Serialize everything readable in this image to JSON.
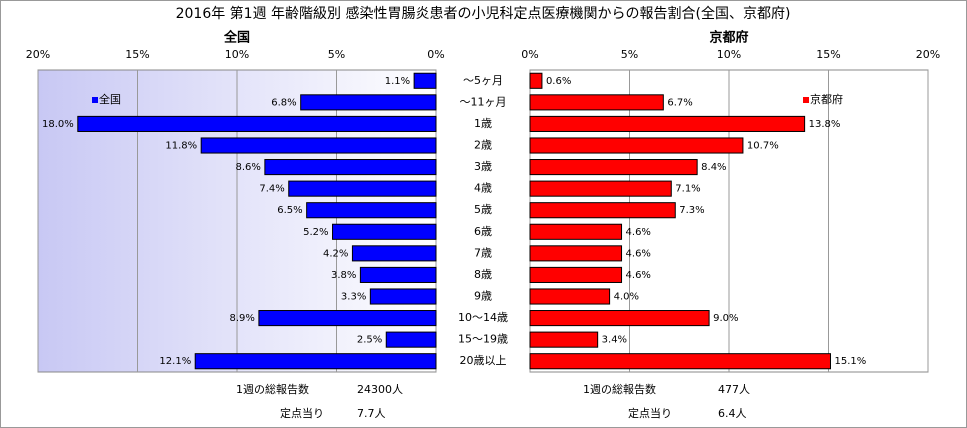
{
  "title": "2016年 第1週 年齢階級別 感染性胃腸炎患者の小児科定点医療機関からの報告割合(全国、京都府)",
  "chart_data": [
    {
      "type": "bar",
      "orientation": "horizontal",
      "x_reversed": true,
      "title": "全国",
      "categories": [
        "～5ヶ月",
        "～11ヶ月",
        "1歳",
        "2歳",
        "3歳",
        "4歳",
        "5歳",
        "6歳",
        "7歳",
        "8歳",
        "9歳",
        "10～14歳",
        "15～19歳",
        "20歳以上"
      ],
      "series": [
        {
          "name": "全国",
          "color": "#0000ff",
          "values": [
            1.1,
            6.8,
            18.0,
            11.8,
            8.6,
            7.4,
            6.5,
            5.2,
            4.2,
            3.8,
            3.3,
            8.9,
            2.5,
            12.1
          ],
          "value_labels": [
            "1.1%",
            "6.8%",
            "18.0%",
            "11.8%",
            "8.6%",
            "7.4%",
            "6.5%",
            "5.2%",
            "4.2%",
            "3.8%",
            "3.3%",
            "8.9%",
            "2.5%",
            "12.1%"
          ]
        }
      ],
      "xlim": [
        0,
        20
      ],
      "xticks": [
        {
          "value": 0,
          "label": "0%"
        },
        {
          "value": 5,
          "label": "5%"
        },
        {
          "value": 10,
          "label": "10%"
        },
        {
          "value": 15,
          "label": "15%"
        },
        {
          "value": 20,
          "label": "20%"
        }
      ],
      "grid": true,
      "legend": "upper left",
      "annotations": [
        "1週の総報告数",
        "24300人",
        "定点当り",
        "7.7人"
      ]
    },
    {
      "type": "bar",
      "orientation": "horizontal",
      "x_reversed": false,
      "title": "京都府",
      "series": [
        {
          "name": "京都府",
          "color": "#ff0000",
          "values": [
            0.6,
            6.7,
            13.8,
            10.7,
            8.4,
            7.1,
            7.3,
            4.6,
            4.6,
            4.6,
            4.0,
            9.0,
            3.4,
            15.1
          ],
          "value_labels": [
            "0.6%",
            "6.7%",
            "13.8%",
            "10.7%",
            "8.4%",
            "7.1%",
            "7.3%",
            "4.6%",
            "4.6%",
            "4.6%",
            "4.0%",
            "9.0%",
            "3.4%",
            "15.1%"
          ]
        }
      ],
      "xlim": [
        0,
        20
      ],
      "xticks": [
        {
          "value": 0,
          "label": "0%"
        },
        {
          "value": 5,
          "label": "5%"
        },
        {
          "value": 10,
          "label": "10%"
        },
        {
          "value": 15,
          "label": "15%"
        },
        {
          "value": 20,
          "label": "20%"
        }
      ],
      "grid": true,
      "legend": "upper right",
      "annotations": [
        "1週の総報告数",
        "477人",
        "定点当り",
        "6.4人"
      ]
    }
  ]
}
